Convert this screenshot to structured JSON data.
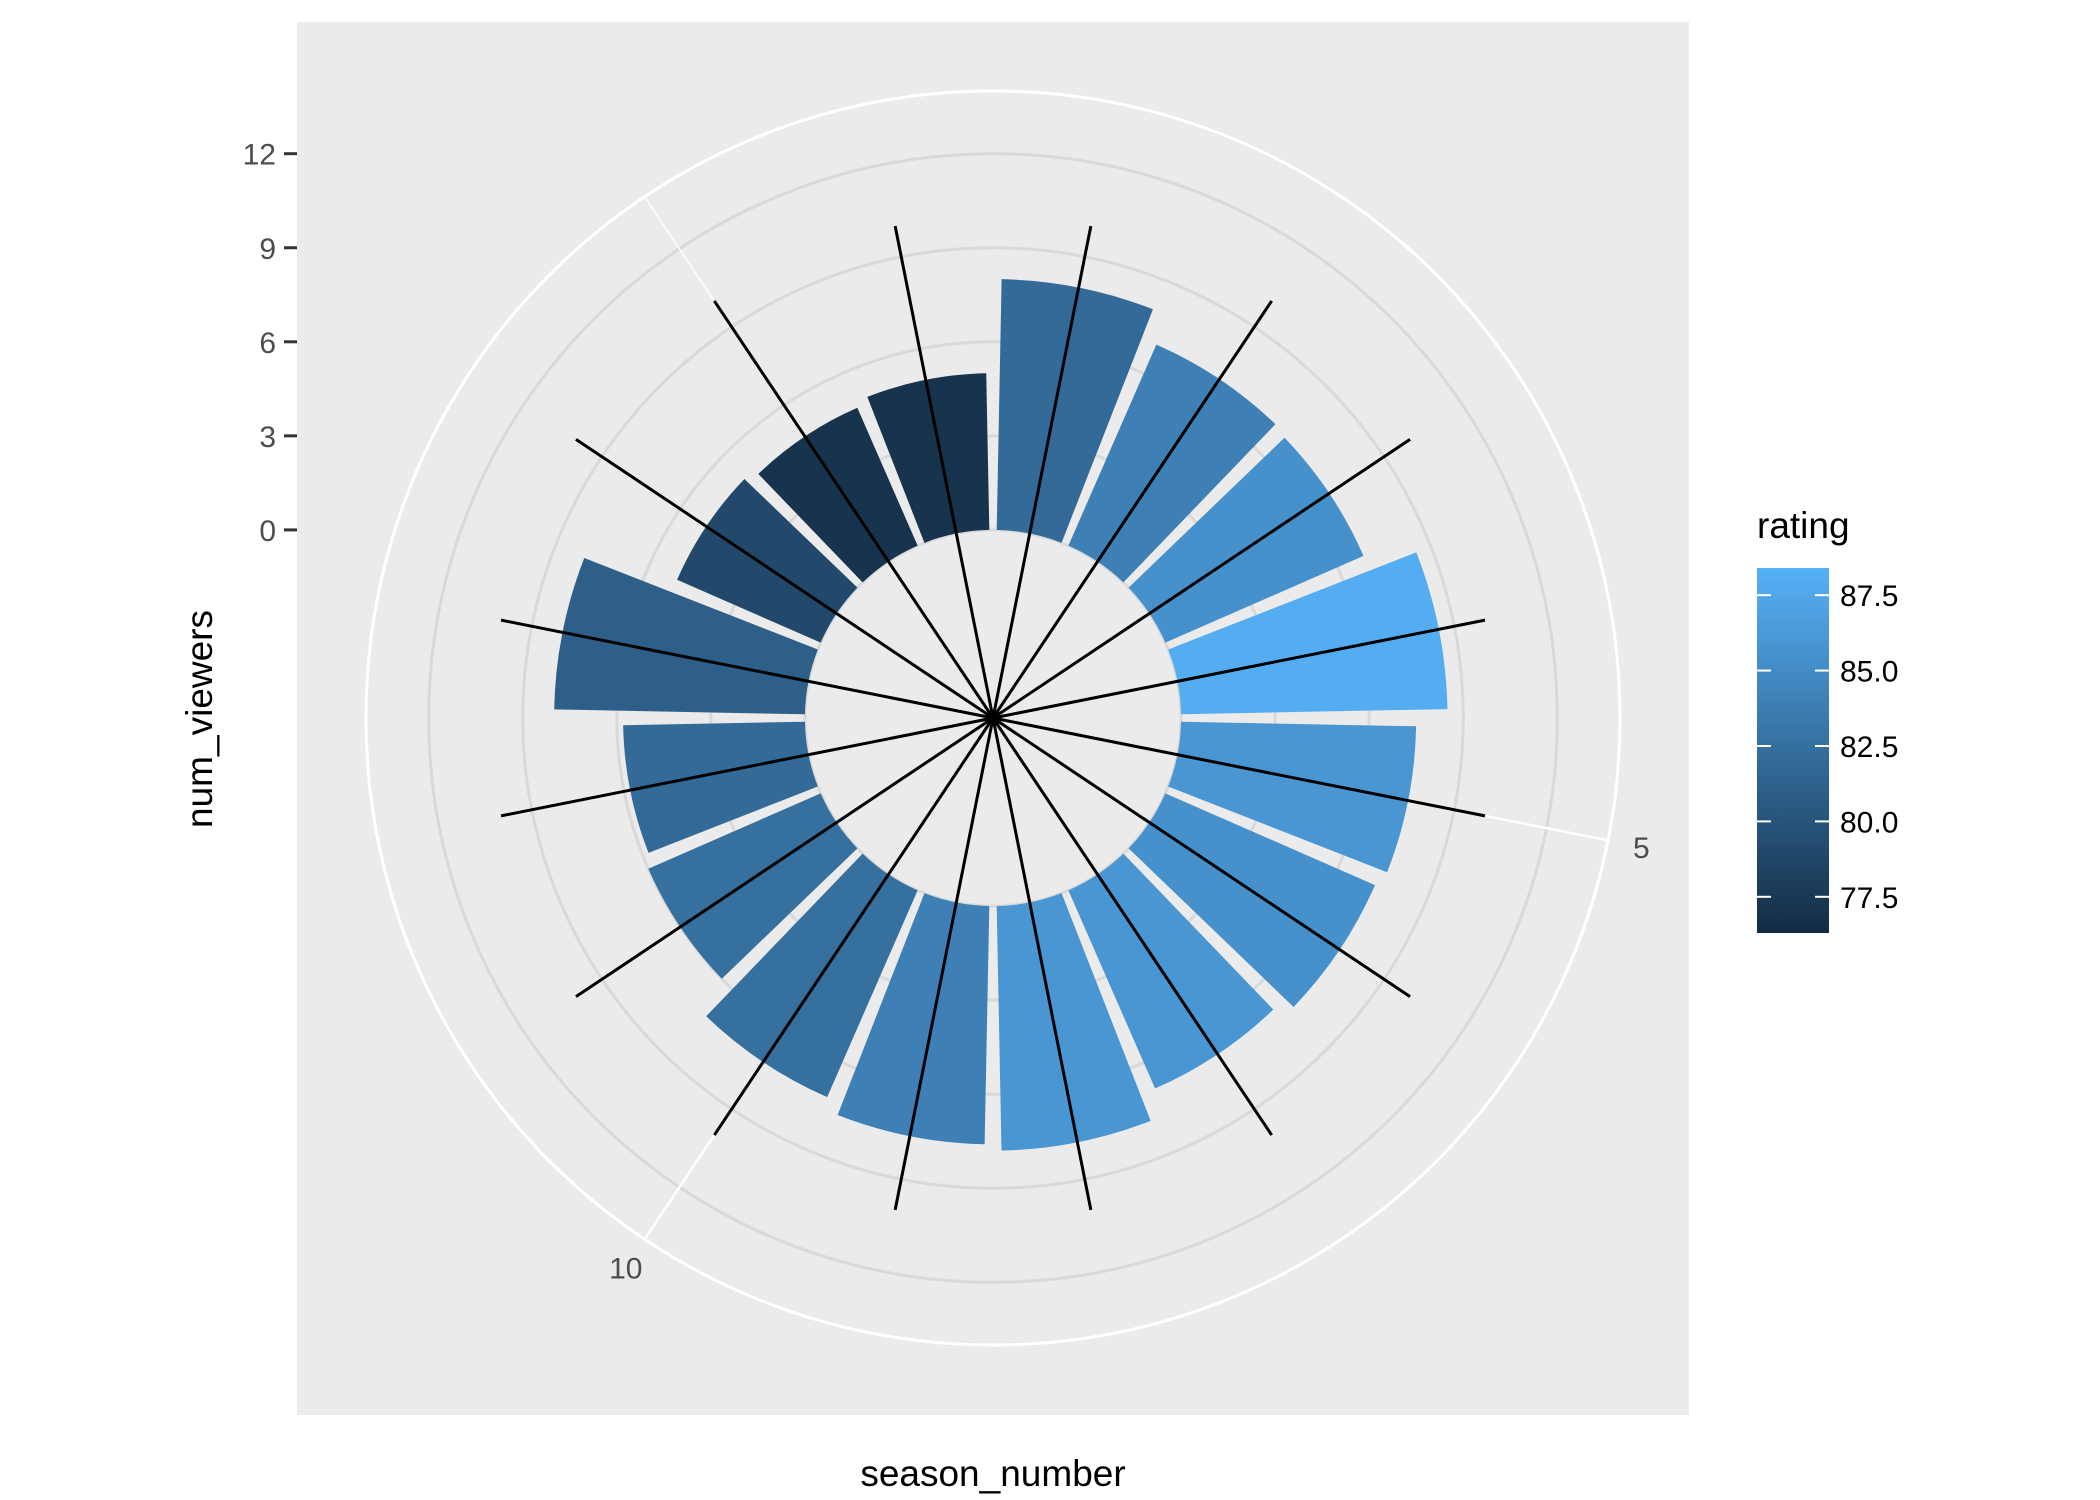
{
  "chart_data": {
    "type": "bar",
    "coord": "polar",
    "x_field": "season_number",
    "y_field": "num_viewers",
    "fill_field": "rating",
    "x": [
      1,
      2,
      3,
      4,
      5,
      6,
      7,
      8,
      9,
      10,
      11,
      12,
      13,
      14,
      15,
      16
    ],
    "values": [
      8.0,
      7.0,
      6.9,
      8.5,
      7.5,
      7.3,
      6.9,
      7.8,
      7.6,
      7.2,
      6.0,
      5.8,
      8.0,
      5.0,
      4.8,
      5.0
    ],
    "ratings": [
      82.0,
      84.0,
      85.5,
      88.0,
      86.0,
      85.5,
      86.0,
      86.0,
      84.0,
      82.5,
      82.5,
      82.0,
      81.0,
      79.0,
      77.0,
      77.0
    ],
    "error_values": [
      10,
      10,
      10,
      10,
      10,
      10,
      10,
      10,
      10,
      10,
      10,
      10,
      10,
      10,
      10,
      10
    ],
    "ylim": [
      -6,
      14
    ],
    "y_ticks": [
      "12",
      "9",
      "6",
      "3",
      "0"
    ],
    "x_ticks": [
      "5",
      "10"
    ],
    "xlabel": "season_number",
    "ylabel": "num_viewers",
    "legend": {
      "title": "rating",
      "position": "right",
      "labels": [
        "87.5",
        "85.0",
        "82.5",
        "80.0",
        "77.5"
      ],
      "values": [
        87.5,
        85.0,
        82.5,
        80.0,
        77.5
      ],
      "range": [
        76.3,
        88.4
      ],
      "low_color": "#132B43",
      "high_color": "#56B1F7"
    },
    "colors": {
      "panel": "#EBEBEB",
      "grid_major": "#FFFFFF",
      "grid_ring": "#D9D9D9",
      "error_line": "#000000"
    },
    "grid": true
  }
}
